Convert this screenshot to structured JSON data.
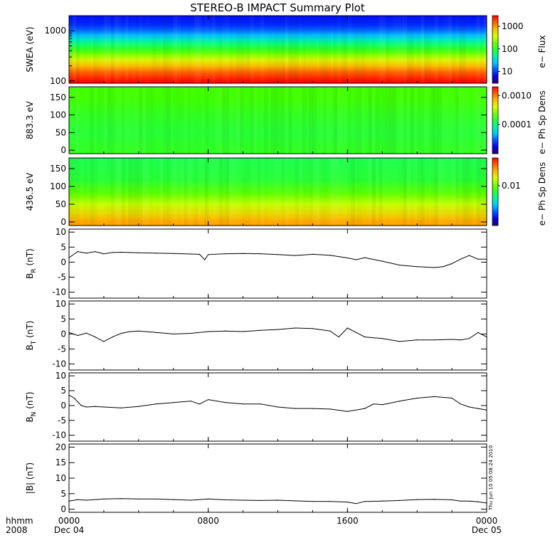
{
  "title": "STEREO-B IMPACT Summary Plot",
  "footer": {
    "hhmm_label": "hhmm",
    "year_label": "2008",
    "date_start": "Dec 04",
    "date_end": "Dec 05",
    "timestamp": "Thu Jun 10 05:08:24 2010"
  },
  "chart_data": [
    {
      "type": "heatmap",
      "ylabel": "SWEA (eV)",
      "yscale": "log",
      "ylim": [
        90,
        2000
      ],
      "yticks": [
        "100",
        "1000"
      ],
      "colorbar": {
        "label": "e− Flux",
        "ticks": [
          "1000",
          "100",
          "10"
        ],
        "scale": "log",
        "range": [
          3,
          3000
        ]
      },
      "profile": [
        {
          "y": 100,
          "level": 0.99
        },
        {
          "y": 150,
          "level": 0.9
        },
        {
          "y": 200,
          "level": 0.8
        },
        {
          "y": 260,
          "level": 0.72
        },
        {
          "y": 330,
          "level": 0.62
        },
        {
          "y": 420,
          "level": 0.53
        },
        {
          "y": 520,
          "level": 0.46
        },
        {
          "y": 650,
          "level": 0.38
        },
        {
          "y": 820,
          "level": 0.29
        },
        {
          "y": 1000,
          "level": 0.22
        },
        {
          "y": 1300,
          "level": 0.16
        },
        {
          "y": 2000,
          "level": 0.13
        }
      ]
    },
    {
      "type": "heatmap",
      "ylabel": "883.3 eV",
      "ylim": [
        -10,
        180
      ],
      "yticks": [
        "0",
        "50",
        "100",
        "150"
      ],
      "colorbar": {
        "label": "e− Ph Sp Dens",
        "ticks": [
          "0.0010",
          "0.0001"
        ],
        "scale": "log",
        "range": [
          1e-05,
          0.002
        ]
      },
      "profile": [
        {
          "y": 0,
          "level": 0.52
        },
        {
          "y": 50,
          "level": 0.5
        },
        {
          "y": 100,
          "level": 0.52
        },
        {
          "y": 150,
          "level": 0.55
        },
        {
          "y": 180,
          "level": 0.55
        }
      ]
    },
    {
      "type": "heatmap",
      "ylabel": "436.5 eV",
      "ylim": [
        -10,
        180
      ],
      "yticks": [
        "0",
        "50",
        "100",
        "150"
      ],
      "colorbar": {
        "label": "e− Ph Sp Dens",
        "ticks": [
          "0.01"
        ],
        "scale": "log",
        "range": [
          0.001,
          0.05
        ]
      },
      "profile": [
        {
          "y": 0,
          "level": 0.83
        },
        {
          "y": 20,
          "level": 0.77
        },
        {
          "y": 50,
          "level": 0.68
        },
        {
          "y": 80,
          "level": 0.58
        },
        {
          "y": 120,
          "level": 0.5
        },
        {
          "y": 180,
          "level": 0.48
        }
      ]
    },
    {
      "type": "line",
      "ylabel": "B_R (nT)",
      "ylabel_main": "B",
      "ylabel_sub": "R",
      "ylabel_unit": " (nT)",
      "ylim": [
        -12,
        11
      ],
      "yticks": [
        -10,
        -5,
        0,
        5,
        10
      ],
      "x": [
        0,
        0.5,
        1,
        1.5,
        2,
        2.5,
        3,
        3.5,
        4,
        5,
        6,
        7,
        7.5,
        7.8,
        8,
        9,
        10,
        11,
        12,
        13,
        14,
        15,
        16,
        16.5,
        17,
        18,
        19,
        20,
        21,
        21.5,
        22,
        22.5,
        23,
        23.5,
        24
      ],
      "y": [
        1.5,
        3.5,
        3.0,
        3.5,
        2.8,
        3.2,
        3.3,
        3.2,
        3.1,
        3.0,
        2.9,
        2.7,
        2.6,
        0.8,
        2.5,
        2.8,
        2.9,
        2.8,
        2.5,
        2.2,
        2.6,
        2.3,
        1.4,
        0.8,
        1.5,
        0.3,
        -1.0,
        -1.5,
        -1.8,
        -1.5,
        -0.5,
        1.0,
        2.2,
        1.0,
        1.0
      ]
    },
    {
      "type": "line",
      "ylabel": "B_T (nT)",
      "ylabel_main": "B",
      "ylabel_sub": "T",
      "ylabel_unit": " (nT)",
      "ylim": [
        -12,
        11
      ],
      "yticks": [
        -10,
        -5,
        0,
        5,
        10
      ],
      "x": [
        0,
        0.5,
        1,
        1.5,
        2,
        2.5,
        3,
        3.5,
        4,
        5,
        6,
        7,
        8,
        9,
        10,
        11,
        12,
        13,
        14,
        15,
        15.5,
        16,
        16.5,
        17,
        18,
        19,
        20,
        21,
        22,
        22.5,
        23,
        23.5,
        24
      ],
      "y": [
        0.5,
        -0.5,
        0.3,
        -1.0,
        -2.5,
        -1.0,
        0.2,
        0.8,
        1.0,
        0.5,
        0.0,
        0.2,
        0.8,
        1.0,
        0.8,
        1.2,
        1.5,
        2.0,
        1.8,
        1.0,
        -1.0,
        2.0,
        0.5,
        -1.0,
        -1.5,
        -2.5,
        -2.0,
        -2.0,
        -1.8,
        -2.0,
        -1.5,
        0.5,
        -1.0
      ]
    },
    {
      "type": "line",
      "ylabel": "B_N (nT)",
      "ylabel_main": "B",
      "ylabel_sub": "N",
      "ylabel_unit": " (nT)",
      "ylim": [
        -12,
        11
      ],
      "yticks": [
        -10,
        -5,
        0,
        5,
        10
      ],
      "x": [
        0,
        0.3,
        0.7,
        1,
        1.5,
        2,
        3,
        4,
        5,
        6,
        7,
        7.5,
        8,
        9,
        10,
        11,
        12,
        13,
        14,
        15,
        16,
        17,
        17.5,
        18,
        19,
        20,
        21,
        22,
        22.5,
        23,
        23.5,
        24
      ],
      "y": [
        3.5,
        2.5,
        0.0,
        -0.5,
        -0.3,
        -0.5,
        -0.8,
        -0.3,
        0.5,
        1.0,
        1.5,
        0.5,
        2.0,
        1.0,
        0.5,
        0.5,
        -0.5,
        -1.0,
        -1.0,
        -1.2,
        -2.0,
        -1.0,
        0.5,
        0.3,
        1.5,
        2.5,
        3.0,
        2.5,
        0.5,
        -0.5,
        -1.0,
        -1.5
      ]
    },
    {
      "type": "line",
      "ylabel": "|B| (nT)",
      "ylabel_main": "|B|",
      "ylabel_sub": "",
      "ylabel_unit": " (nT)",
      "ylim": [
        -1,
        21
      ],
      "yticks": [
        0,
        5,
        10,
        15,
        20
      ],
      "x": [
        0,
        0.5,
        1,
        2,
        3,
        4,
        5,
        6,
        7,
        8,
        9,
        10,
        11,
        12,
        13,
        14,
        15,
        16,
        16.5,
        17,
        18,
        19,
        20,
        21,
        22,
        22.5,
        23,
        23.5,
        24
      ],
      "y": [
        2.6,
        3.1,
        2.9,
        3.3,
        3.4,
        3.3,
        3.3,
        3.1,
        2.9,
        3.3,
        3.0,
        2.9,
        2.8,
        2.9,
        2.7,
        2.5,
        2.5,
        2.3,
        1.8,
        2.5,
        2.6,
        2.8,
        3.1,
        3.2,
        3.0,
        2.6,
        2.6,
        2.4,
        2.0
      ]
    }
  ],
  "xaxis": {
    "range": [
      0,
      24
    ],
    "ticks": [
      {
        "x": 0,
        "label": "0000"
      },
      {
        "x": 8,
        "label": "0800"
      },
      {
        "x": 16,
        "label": "1600"
      },
      {
        "x": 24,
        "label": "0000"
      }
    ]
  }
}
